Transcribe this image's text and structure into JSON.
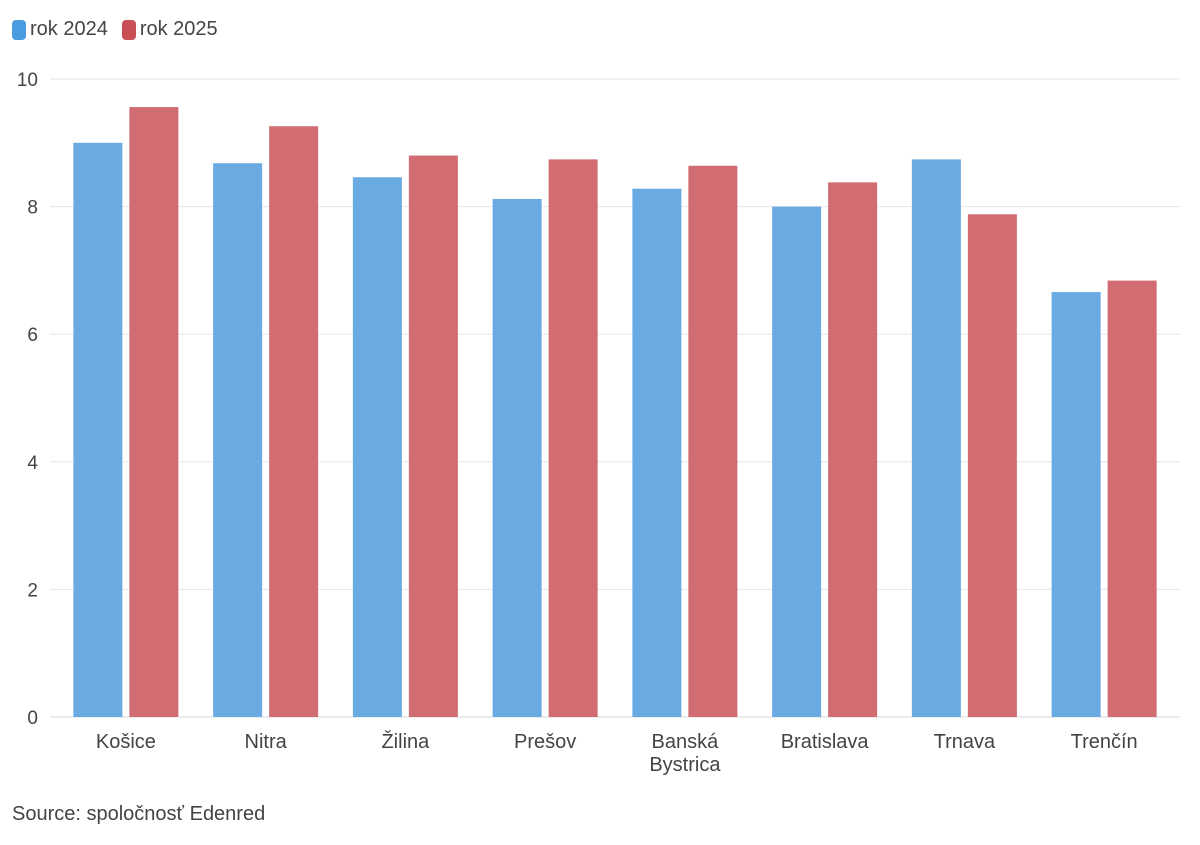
{
  "chart_data": {
    "type": "bar",
    "categories": [
      "Košice",
      "Nitra",
      "Žilina",
      "Prešov",
      "Banská Bystrica",
      "Bratislava",
      "Trnava",
      "Trenčín"
    ],
    "category_lines": [
      [
        "Košice"
      ],
      [
        "Nitra"
      ],
      [
        "Žilina"
      ],
      [
        "Prešov"
      ],
      [
        "Banská",
        "Bystrica"
      ],
      [
        "Bratislava"
      ],
      [
        "Trnava"
      ],
      [
        "Trenčín"
      ]
    ],
    "series": [
      {
        "name": "rok 2024",
        "color": "#6aaae3",
        "values": [
          9.0,
          8.68,
          8.46,
          8.12,
          8.28,
          8.0,
          8.74,
          6.66
        ]
      },
      {
        "name": "rok 2025",
        "color": "#d06c72",
        "values": [
          9.56,
          9.26,
          8.8,
          8.74,
          8.64,
          8.38,
          7.88,
          6.84
        ]
      }
    ],
    "title": "",
    "xlabel": "",
    "ylabel": "",
    "ylim": [
      0,
      10
    ],
    "yticks": [
      0,
      2,
      4,
      6,
      8,
      10
    ],
    "grid": true,
    "legend_position": "top-left"
  },
  "source": "Source: spoločnosť Edenred"
}
